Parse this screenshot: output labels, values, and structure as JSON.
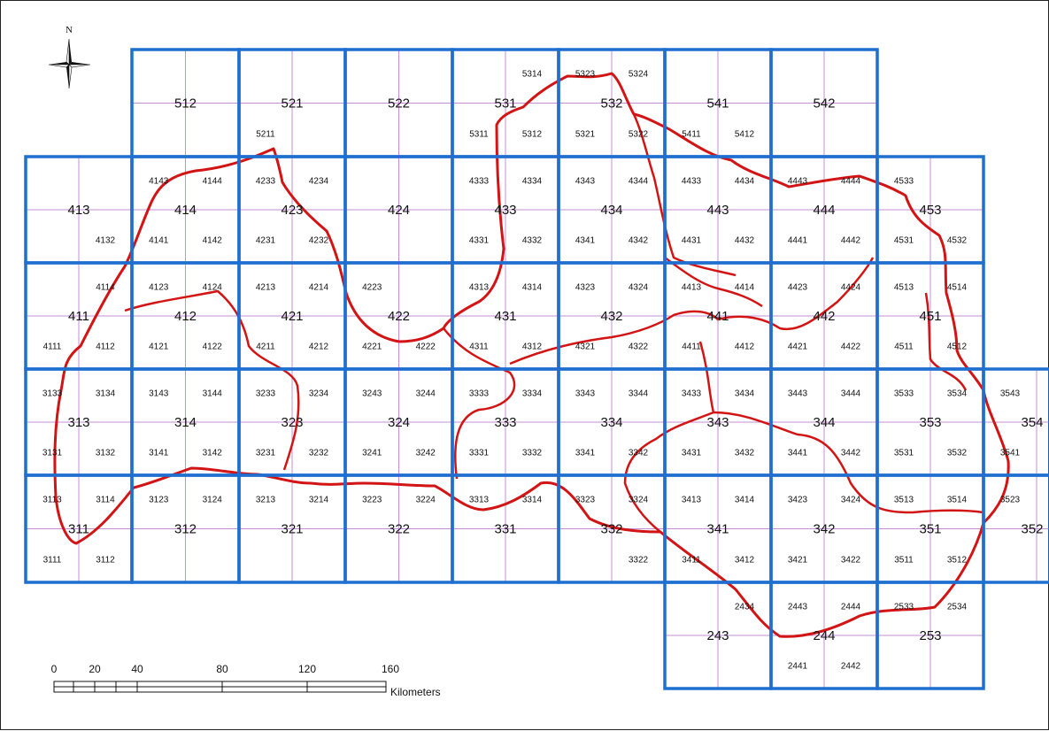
{
  "north_arrow": {
    "label": "N"
  },
  "scale_bar": {
    "ticks": [
      "0",
      "20",
      "40",
      "80",
      "120",
      "160"
    ],
    "unit": "Kilometers"
  },
  "sheets": [
    {
      "id": "512",
      "subs": []
    },
    {
      "id": "521",
      "subs": [
        "5211"
      ]
    },
    {
      "id": "522",
      "subs": []
    },
    {
      "id": "531",
      "subs": [
        "5314",
        "5311",
        "5312"
      ]
    },
    {
      "id": "532",
      "subs": [
        "5323",
        "5324",
        "5321",
        "5322"
      ]
    },
    {
      "id": "541",
      "subs": [
        "5411",
        "5412"
      ]
    },
    {
      "id": "542",
      "subs": []
    },
    {
      "id": "413",
      "subs": [
        "4132"
      ]
    },
    {
      "id": "414",
      "subs": [
        "4143",
        "4144",
        "4141",
        "4142"
      ]
    },
    {
      "id": "423",
      "subs": [
        "4233",
        "4234",
        "4231",
        "4232"
      ]
    },
    {
      "id": "424",
      "subs": []
    },
    {
      "id": "433",
      "subs": [
        "4333",
        "4334",
        "4331",
        "4332"
      ]
    },
    {
      "id": "434",
      "subs": [
        "4343",
        "4344",
        "4341",
        "4342"
      ]
    },
    {
      "id": "443",
      "subs": [
        "4433",
        "4434",
        "4431",
        "4432"
      ]
    },
    {
      "id": "444",
      "subs": [
        "4443",
        "4444",
        "4441",
        "4442"
      ]
    },
    {
      "id": "453",
      "subs": [
        "4533",
        "4531",
        "4532"
      ]
    },
    {
      "id": "411",
      "subs": [
        "4114",
        "4111",
        "4112"
      ]
    },
    {
      "id": "412",
      "subs": [
        "4123",
        "4124",
        "4121",
        "4122"
      ]
    },
    {
      "id": "421",
      "subs": [
        "4213",
        "4214",
        "4211",
        "4212"
      ]
    },
    {
      "id": "422",
      "subs": [
        "4223",
        "4221",
        "4222"
      ]
    },
    {
      "id": "431",
      "subs": [
        "4313",
        "4314",
        "4311",
        "4312"
      ]
    },
    {
      "id": "432",
      "subs": [
        "4323",
        "4324",
        "4321",
        "4322"
      ]
    },
    {
      "id": "441",
      "subs": [
        "4413",
        "4414",
        "4411",
        "4412"
      ]
    },
    {
      "id": "442",
      "subs": [
        "4423",
        "4424",
        "4421",
        "4422"
      ]
    },
    {
      "id": "451",
      "subs": [
        "4513",
        "4514",
        "4511",
        "4512"
      ]
    },
    {
      "id": "313",
      "subs": [
        "3133",
        "3134",
        "3131",
        "3132"
      ]
    },
    {
      "id": "314",
      "subs": [
        "3143",
        "3144",
        "3141",
        "3142"
      ]
    },
    {
      "id": "323",
      "subs": [
        "3233",
        "3234",
        "3231",
        "3232"
      ]
    },
    {
      "id": "324",
      "subs": [
        "3243",
        "3244",
        "3241",
        "3242"
      ]
    },
    {
      "id": "333",
      "subs": [
        "3333",
        "3334",
        "3331",
        "3332"
      ]
    },
    {
      "id": "334",
      "subs": [
        "3343",
        "3344",
        "3341",
        "3342"
      ]
    },
    {
      "id": "343",
      "subs": [
        "3433",
        "3434",
        "3431",
        "3432"
      ]
    },
    {
      "id": "344",
      "subs": [
        "3443",
        "3444",
        "3441",
        "3442"
      ]
    },
    {
      "id": "353",
      "subs": [
        "3533",
        "3534",
        "3531",
        "3532"
      ]
    },
    {
      "id": "354",
      "subs": [
        "3543",
        "3541"
      ]
    },
    {
      "id": "311",
      "subs": [
        "3113",
        "3114",
        "3111",
        "3112"
      ]
    },
    {
      "id": "312",
      "subs": [
        "3123",
        "3124"
      ]
    },
    {
      "id": "321",
      "subs": [
        "3213",
        "3214"
      ]
    },
    {
      "id": "322",
      "subs": [
        "3223",
        "3224"
      ]
    },
    {
      "id": "331",
      "subs": [
        "3313",
        "3314"
      ]
    },
    {
      "id": "332",
      "subs": [
        "3323",
        "3324",
        "3322"
      ]
    },
    {
      "id": "341",
      "subs": [
        "3413",
        "3414",
        "3411",
        "3412"
      ]
    },
    {
      "id": "342",
      "subs": [
        "3423",
        "3424",
        "3421",
        "3422"
      ]
    },
    {
      "id": "351",
      "subs": [
        "3513",
        "3514",
        "3511",
        "3512"
      ]
    },
    {
      "id": "352",
      "subs": [
        "3523"
      ]
    },
    {
      "id": "243",
      "subs": [
        "2434"
      ]
    },
    {
      "id": "244",
      "subs": [
        "2443",
        "2444",
        "2441",
        "2442"
      ]
    },
    {
      "id": "253",
      "subs": [
        "2533",
        "2534"
      ]
    }
  ],
  "colors": {
    "grid": "#1f6fd1",
    "subgrid": "#c58fd6",
    "boundary": "#d21414"
  }
}
